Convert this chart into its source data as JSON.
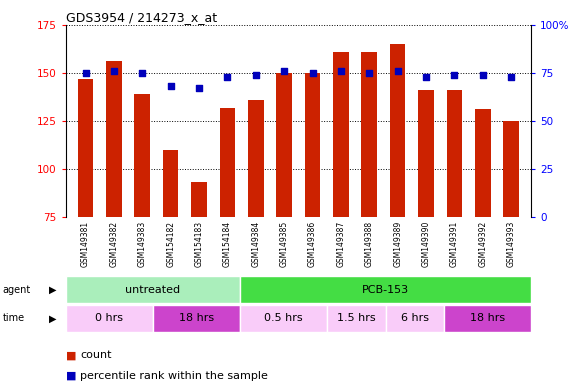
{
  "title": "GDS3954 / 214273_x_at",
  "samples": [
    "GSM149381",
    "GSM149382",
    "GSM149383",
    "GSM154182",
    "GSM154183",
    "GSM154184",
    "GSM149384",
    "GSM149385",
    "GSM149386",
    "GSM149387",
    "GSM149388",
    "GSM149389",
    "GSM149390",
    "GSM149391",
    "GSM149392",
    "GSM149393"
  ],
  "count_values": [
    147,
    156,
    139,
    110,
    93,
    132,
    136,
    150,
    150,
    161,
    161,
    165,
    141,
    141,
    131,
    125
  ],
  "percentile_values": [
    75,
    76,
    75,
    68,
    67,
    73,
    74,
    76,
    75,
    76,
    75,
    76,
    73,
    74,
    74,
    73
  ],
  "ylim_left": [
    75,
    175
  ],
  "ylim_right": [
    0,
    100
  ],
  "yticks_left": [
    75,
    100,
    125,
    150,
    175
  ],
  "yticks_right": [
    0,
    25,
    50,
    75,
    100
  ],
  "ytick_labels_right": [
    "0",
    "25",
    "50",
    "75",
    "100%"
  ],
  "agent_groups": [
    {
      "label": "untreated",
      "start": 0,
      "end": 6,
      "color": "#aaeebb"
    },
    {
      "label": "PCB-153",
      "start": 6,
      "end": 16,
      "color": "#44dd44"
    }
  ],
  "time_groups": [
    {
      "label": "0 hrs",
      "start": 0,
      "end": 3,
      "color": "#f9ccf9"
    },
    {
      "label": "18 hrs",
      "start": 3,
      "end": 6,
      "color": "#cc44cc"
    },
    {
      "label": "0.5 hrs",
      "start": 6,
      "end": 9,
      "color": "#f9ccf9"
    },
    {
      "label": "1.5 hrs",
      "start": 9,
      "end": 11,
      "color": "#f9ccf9"
    },
    {
      "label": "6 hrs",
      "start": 11,
      "end": 13,
      "color": "#f9ccf9"
    },
    {
      "label": "18 hrs",
      "start": 13,
      "end": 16,
      "color": "#cc44cc"
    }
  ],
  "bar_color": "#cc2200",
  "dot_color": "#0000bb",
  "background_color": "#ffffff",
  "plot_bg_color": "#ffffff",
  "label_bg_color": "#cccccc",
  "legend_count_color": "#cc2200",
  "legend_dot_color": "#0000bb"
}
